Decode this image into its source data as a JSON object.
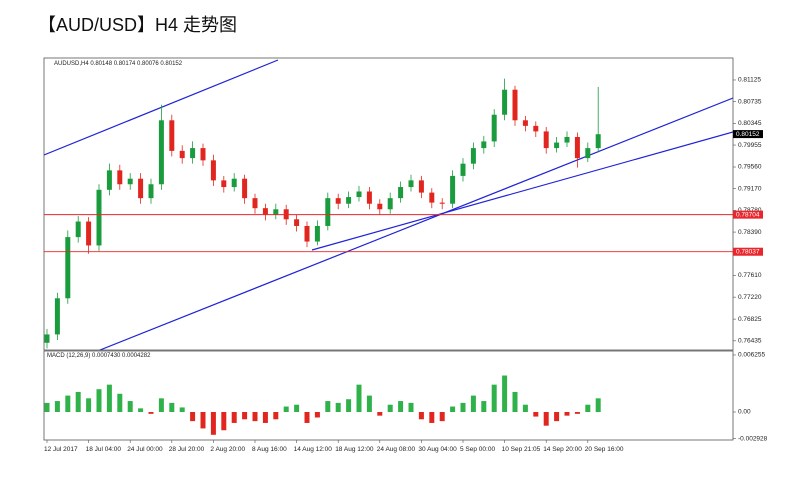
{
  "chart_data": [
    {
      "type": "candlestick",
      "title": "【AUD/USD】H4 走势图",
      "subtitle": "AUDUSD,H4 0.80148 0.80174 0.80076 0.80152",
      "up_color": "#1a9c3e",
      "down_color": "#e0261e",
      "categories": [
        "12 Jul 2017",
        null,
        null,
        null,
        "18 Jul 04:00",
        null,
        null,
        null,
        "24 Jul 00:00",
        null,
        null,
        null,
        "28 Jul 20:00",
        null,
        null,
        null,
        "2 Aug 20:00",
        null,
        null,
        null,
        "8 Aug 16:00",
        null,
        null,
        null,
        "14 Aug 12:00",
        null,
        null,
        null,
        "18 Aug 12:00",
        null,
        null,
        null,
        "24 Aug 08:00",
        null,
        null,
        null,
        "30 Aug 04:00",
        null,
        null,
        null,
        "5 Sep 00:00",
        null,
        null,
        null,
        "10 Sep 21:05",
        null,
        null,
        null,
        "14 Sep 20:00",
        null,
        null,
        null,
        "20 Sep 16:00",
        null
      ],
      "open": [
        0.764,
        0.7655,
        0.772,
        0.783,
        0.7858,
        0.7815,
        0.7915,
        0.795,
        0.7925,
        0.7935,
        0.79,
        0.7925,
        0.804,
        0.7985,
        0.7972,
        0.799,
        0.7968,
        0.7932,
        0.792,
        0.7935,
        0.79,
        0.7882,
        0.787,
        0.788,
        0.7862,
        0.785,
        0.7822,
        0.785,
        0.79,
        0.789,
        0.7902,
        0.7912,
        0.789,
        0.788,
        0.79,
        0.792,
        0.7932,
        0.791,
        0.7892,
        0.789,
        0.794,
        0.7962,
        0.799,
        0.8002,
        0.805,
        0.8095,
        0.804,
        0.803,
        0.802,
        0.799,
        0.8,
        0.801,
        0.7972,
        0.799
      ],
      "high": [
        0.7665,
        0.773,
        0.7842,
        0.7868,
        0.7866,
        0.7925,
        0.7962,
        0.796,
        0.7945,
        0.7945,
        0.7935,
        0.8068,
        0.805,
        0.7995,
        0.8002,
        0.7998,
        0.7978,
        0.794,
        0.7945,
        0.7942,
        0.7908,
        0.789,
        0.789,
        0.7888,
        0.787,
        0.7858,
        0.786,
        0.791,
        0.7908,
        0.7912,
        0.7922,
        0.792,
        0.7898,
        0.791,
        0.793,
        0.7942,
        0.794,
        0.7918,
        0.79,
        0.795,
        0.7972,
        0.8,
        0.8012,
        0.806,
        0.8115,
        0.8102,
        0.8048,
        0.8038,
        0.8028,
        0.801,
        0.802,
        0.8018,
        0.8,
        0.81
      ],
      "low": [
        0.763,
        0.7645,
        0.771,
        0.782,
        0.78,
        0.7805,
        0.7905,
        0.7915,
        0.7915,
        0.789,
        0.789,
        0.7915,
        0.7975,
        0.7962,
        0.7962,
        0.7958,
        0.7922,
        0.791,
        0.7912,
        0.789,
        0.7872,
        0.786,
        0.7862,
        0.7852,
        0.784,
        0.7812,
        0.7815,
        0.7842,
        0.788,
        0.7882,
        0.7894,
        0.788,
        0.787,
        0.7872,
        0.7892,
        0.7912,
        0.79,
        0.7882,
        0.788,
        0.7882,
        0.793,
        0.7952,
        0.798,
        0.7992,
        0.804,
        0.803,
        0.802,
        0.801,
        0.798,
        0.7982,
        0.7992,
        0.7955,
        0.7965,
        0.7982
      ],
      "close": [
        0.7655,
        0.772,
        0.783,
        0.7858,
        0.7815,
        0.7915,
        0.795,
        0.7925,
        0.7935,
        0.79,
        0.7925,
        0.804,
        0.7985,
        0.7972,
        0.799,
        0.7968,
        0.7932,
        0.792,
        0.7935,
        0.79,
        0.7882,
        0.787,
        0.788,
        0.7862,
        0.785,
        0.7822,
        0.785,
        0.79,
        0.789,
        0.7902,
        0.7912,
        0.789,
        0.788,
        0.79,
        0.792,
        0.7932,
        0.791,
        0.7892,
        0.789,
        0.794,
        0.7962,
        0.799,
        0.8002,
        0.805,
        0.8095,
        0.804,
        0.803,
        0.802,
        0.799,
        0.8,
        0.801,
        0.7972,
        0.799,
        0.8015
      ],
      "ylim": [
        0.7627,
        0.8152
      ],
      "yticks": [
        0.81125,
        0.80735,
        0.80345,
        0.79955,
        {
          "value": 0.7956,
          "label": "0.79560"
        },
        {
          "value": 0.7917,
          "label": "0.79170"
        },
        {
          "value": 0.7878,
          "label": "0.78780"
        },
        {
          "value": 0.7839,
          "label": "0.78390"
        },
        {
          "value": 0.7761,
          "label": "0.77610"
        },
        {
          "value": 0.7722,
          "label": "0.77220"
        },
        0.76825,
        0.76435
      ],
      "price_markers": [
        {
          "value": 0.80152,
          "color": "#000000",
          "line": false
        },
        {
          "value": 0.78704,
          "color": "#e8262b",
          "line": true
        },
        {
          "value": 0.78037,
          "color": "#e8262b",
          "line": true
        }
      ]
    },
    {
      "type": "bar",
      "title": "MACD (12,26,9) 0.0007430 0.0004282",
      "positive_color": "#2fb24a",
      "negative_color": "#e0261e",
      "values": [
        0.001,
        0.0012,
        0.0018,
        0.0022,
        0.0015,
        0.0025,
        0.003,
        0.002,
        0.0012,
        0.0004,
        -0.0002,
        0.0015,
        0.001,
        0.0005,
        -0.001,
        -0.0018,
        -0.0025,
        -0.002,
        -0.0012,
        -0.0008,
        -0.001,
        -0.0012,
        -0.0008,
        0.0006,
        0.0008,
        -0.0012,
        -0.0006,
        0.0012,
        0.001,
        0.0014,
        0.003,
        0.0018,
        -0.0004,
        0.0008,
        0.0012,
        0.001,
        -0.0008,
        -0.0012,
        -0.001,
        0.0006,
        0.001,
        0.0018,
        0.0012,
        0.003,
        0.004,
        0.0022,
        0.0008,
        -0.0005,
        -0.0015,
        -0.001,
        -0.0004,
        -0.0002,
        0.0008,
        0.0015
      ],
      "ylim": [
        -0.00307,
        0.00658
      ],
      "yticks": [
        0.006255,
        {
          "value": 0,
          "label": "0.00"
        },
        -0.002928
      ]
    }
  ]
}
